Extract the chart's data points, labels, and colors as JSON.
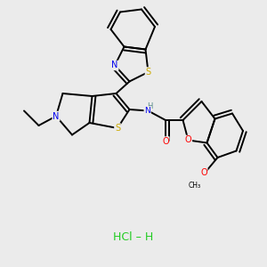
{
  "background_color": "#ebebeb",
  "hcl_color": "#22cc22",
  "atom_colors": {
    "C": "#000000",
    "N": "#0000ee",
    "S": "#ccaa00",
    "O": "#ff0000",
    "H": "#558888"
  },
  "lw": 1.4
}
